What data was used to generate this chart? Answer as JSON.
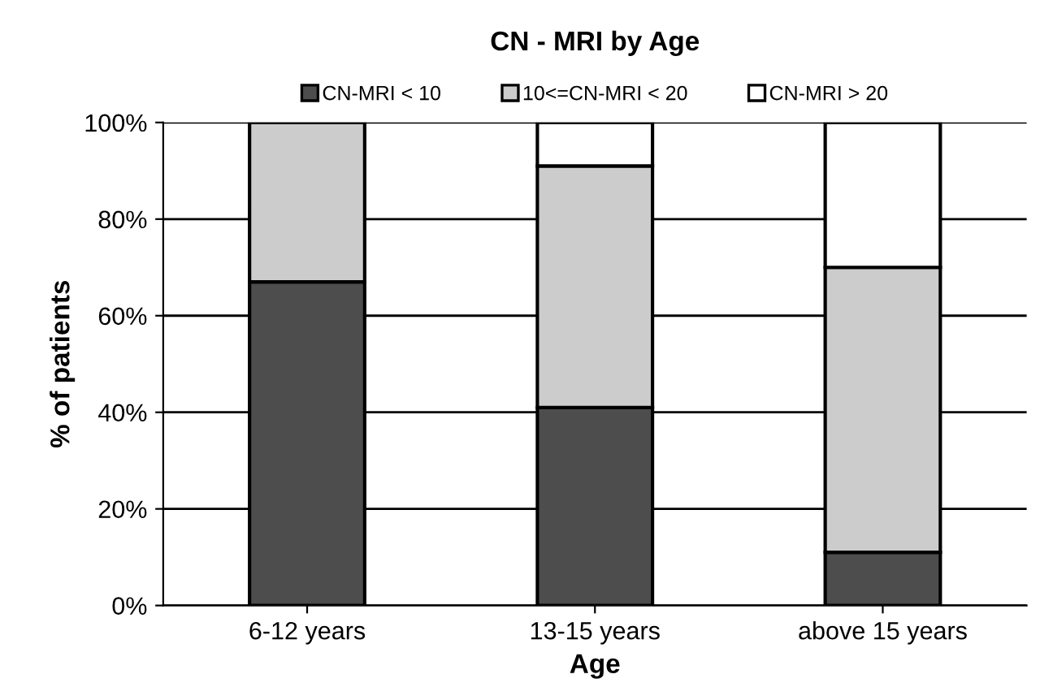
{
  "chart_data": {
    "type": "bar",
    "title": "CN - MRI by Age",
    "xlabel": "Age",
    "ylabel": "% of patients",
    "categories": [
      "6-12 years",
      "13-15 years",
      "above 15 years"
    ],
    "stacked": true,
    "series": [
      {
        "name": "CN-MRI < 10",
        "color": "#4d4d4d",
        "values": [
          67,
          41,
          11
        ]
      },
      {
        "name": "10<=CN-MRI < 20",
        "color": "#cccccc",
        "values": [
          33,
          50,
          59
        ]
      },
      {
        "name": "CN-MRI > 20",
        "color": "#ffffff",
        "values": [
          0,
          9,
          30
        ]
      }
    ],
    "ylim": [
      0,
      100
    ],
    "yticks": [
      {
        "value": 0,
        "label": "0%"
      },
      {
        "value": 20,
        "label": "20%"
      },
      {
        "value": 40,
        "label": "40%"
      },
      {
        "value": 60,
        "label": "60%"
      },
      {
        "value": 80,
        "label": "80%"
      },
      {
        "value": 100,
        "label": "100%"
      }
    ],
    "grid": "y",
    "legend": "top"
  }
}
